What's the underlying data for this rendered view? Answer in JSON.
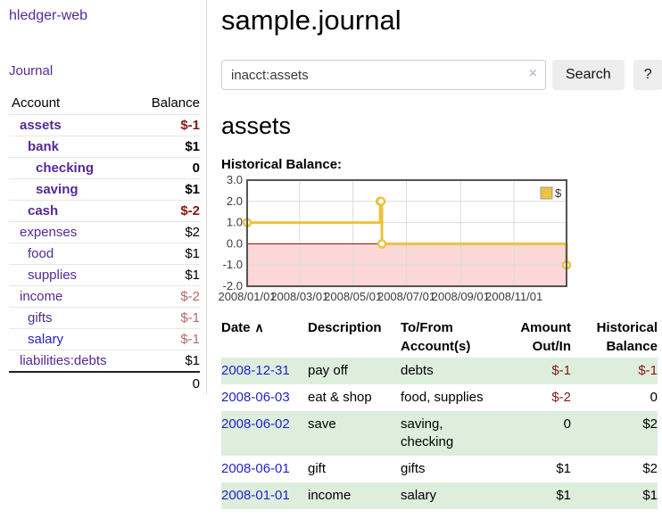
{
  "app": {
    "name": "hledger-web"
  },
  "sidebar": {
    "journal_link": "Journal",
    "accounts_table": {
      "headers": {
        "account": "Account",
        "balance": "Balance"
      },
      "rows": [
        {
          "name": "assets",
          "balance": "$-1",
          "indent": 1,
          "bold": true,
          "balance_color": "negative"
        },
        {
          "name": "bank",
          "balance": "$1",
          "indent": 2,
          "bold": true,
          "balance_color": "normal"
        },
        {
          "name": "checking",
          "balance": "0",
          "indent": 3,
          "bold": true,
          "balance_color": "normal"
        },
        {
          "name": "saving",
          "balance": "$1",
          "indent": 3,
          "bold": true,
          "balance_color": "normal"
        },
        {
          "name": "cash",
          "balance": "$-2",
          "indent": 2,
          "bold": true,
          "balance_color": "negative"
        },
        {
          "name": "expenses",
          "balance": "$2",
          "indent": 1,
          "bold": false,
          "balance_color": "normal"
        },
        {
          "name": "food",
          "balance": "$1",
          "indent": 2,
          "bold": false,
          "balance_color": "normal"
        },
        {
          "name": "supplies",
          "balance": "$1",
          "indent": 2,
          "bold": false,
          "balance_color": "normal"
        },
        {
          "name": "income",
          "balance": "$-2",
          "indent": 1,
          "bold": false,
          "balance_color": "negative-muted"
        },
        {
          "name": "gifts",
          "balance": "$-1",
          "indent": 2,
          "bold": false,
          "balance_color": "negative-muted"
        },
        {
          "name": "salary",
          "balance": "$-1",
          "indent": 2,
          "bold": false,
          "balance_color": "negative-muted",
          "link_variant": "blue"
        },
        {
          "name": "liabilities:debts",
          "balance": "$1",
          "indent": 1,
          "bold": false,
          "balance_color": "normal"
        }
      ],
      "total": "0"
    }
  },
  "header": {
    "title": "sample.journal"
  },
  "search": {
    "value": "inacct:assets",
    "clear_icon": "×",
    "button_label": "Search",
    "help_label": "?"
  },
  "content": {
    "heading": "assets",
    "chart_label": "Historical Balance:"
  },
  "chart_data": {
    "type": "line",
    "title": "Historical Balance",
    "steps": true,
    "grid": true,
    "legend_position": "top-right",
    "x_range": [
      "2008-01-01",
      "2008-12-31"
    ],
    "ylim": [
      -2,
      3
    ],
    "y_ticks": [
      3,
      2,
      1,
      0,
      -1,
      -2
    ],
    "x_ticks": [
      "2008/01/01",
      "2008/03/01",
      "2008/05/01",
      "2008/07/01",
      "2008/09/01",
      "2008/11/01"
    ],
    "series": [
      {
        "name": "$",
        "color": "#edc240",
        "points": [
          {
            "x": "2008-01-01",
            "y": 1
          },
          {
            "x": "2008-06-01",
            "y": 2
          },
          {
            "x": "2008-06-02",
            "y": 2
          },
          {
            "x": "2008-06-03",
            "y": 0
          },
          {
            "x": "2008-12-31",
            "y": -1
          }
        ]
      }
    ],
    "colors": {
      "negative_region": "#fbd7d7",
      "zero_line": "#990000",
      "grid": "#dcdcdc",
      "border": "#545454"
    }
  },
  "transactions_table": {
    "sort_icon": "∧",
    "columns": [
      {
        "lines": [
          "Date"
        ]
      },
      {
        "lines": [
          "Description"
        ]
      },
      {
        "lines": [
          "To/From",
          "Account(s)"
        ]
      },
      {
        "lines": [
          "Amount",
          "Out/In"
        ],
        "align": "right"
      },
      {
        "lines": [
          "Historical",
          "Balance"
        ],
        "align": "right"
      }
    ],
    "rows": [
      {
        "date": "2008-12-31",
        "description": "pay off",
        "accounts": [
          "debts"
        ],
        "amount": "$-1",
        "amount_neg": true,
        "balance": "$-1",
        "balance_neg": true
      },
      {
        "date": "2008-06-03",
        "description": "eat & shop",
        "accounts": [
          "food, supplies"
        ],
        "amount": "$-2",
        "amount_neg": true,
        "balance": "0",
        "balance_neg": false
      },
      {
        "date": "2008-06-02",
        "description": "save",
        "accounts": [
          "saving,",
          "checking"
        ],
        "amount": "0",
        "amount_neg": false,
        "balance": "$2",
        "balance_neg": false
      },
      {
        "date": "2008-06-01",
        "description": "gift",
        "accounts": [
          "gifts"
        ],
        "amount": "$1",
        "amount_neg": false,
        "balance": "$2",
        "balance_neg": false
      },
      {
        "date": "2008-01-01",
        "description": "income",
        "accounts": [
          "salary"
        ],
        "amount": "$1",
        "amount_neg": false,
        "balance": "$1",
        "balance_neg": false
      }
    ]
  },
  "appearance": {
    "purple": "#542a95",
    "blue": "#2323cc",
    "dark_red": "#8b1515",
    "muted_red": "#b46a6a",
    "row_green": "#ddeedd",
    "button_bg": "#ededed"
  }
}
